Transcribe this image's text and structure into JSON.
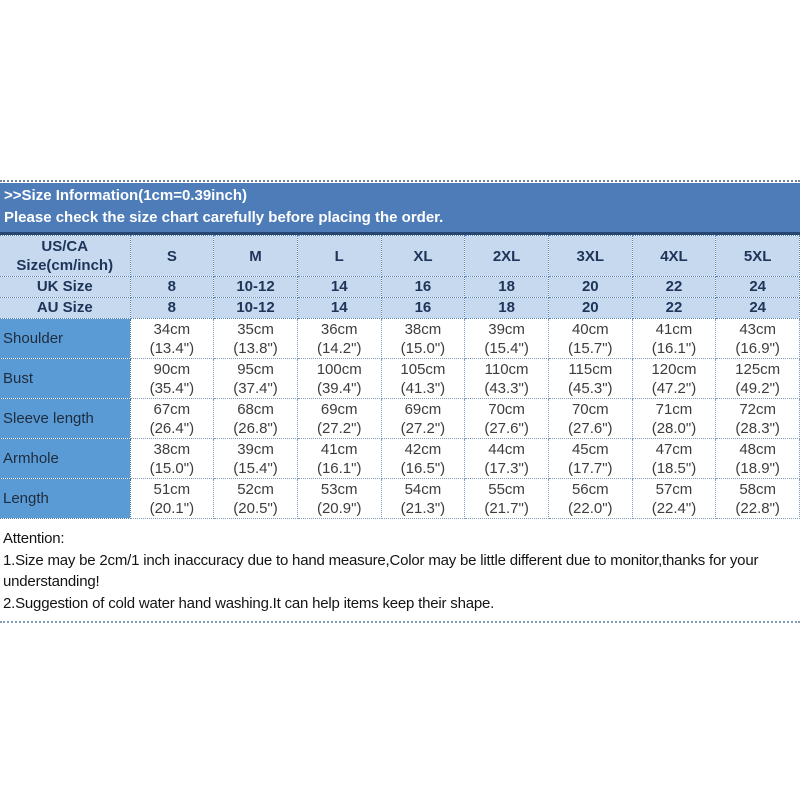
{
  "banner": {
    "title": ">>Size Information(1cm=0.39inch)",
    "subtitle": "Please check the size chart carefully before placing the order."
  },
  "size_table": {
    "header_col": {
      "line1": "US/CA",
      "line2": "Size(cm/inch)"
    },
    "sizes": [
      "S",
      "M",
      "L",
      "XL",
      "2XL",
      "3XL",
      "4XL",
      "5XL"
    ],
    "uk_row": {
      "label": "UK Size",
      "values": [
        "8",
        "10-12",
        "14",
        "16",
        "18",
        "20",
        "22",
        "24"
      ]
    },
    "au_row": {
      "label": "AU Size",
      "values": [
        "8",
        "10-12",
        "14",
        "16",
        "18",
        "20",
        "22",
        "24"
      ]
    },
    "measurement_rows": [
      {
        "label": "Shoulder",
        "cm": [
          "34cm",
          "35cm",
          "36cm",
          "38cm",
          "39cm",
          "40cm",
          "41cm",
          "43cm"
        ],
        "inch": [
          "(13.4\")",
          "(13.8\")",
          "(14.2\")",
          "(15.0\")",
          "(15.4\")",
          "(15.7\")",
          "(16.1\")",
          "(16.9\")"
        ]
      },
      {
        "label": "Bust",
        "cm": [
          "90cm",
          "95cm",
          "100cm",
          "105cm",
          "110cm",
          "115cm",
          "120cm",
          "125cm"
        ],
        "inch": [
          "(35.4\")",
          "(37.4\")",
          "(39.4\")",
          "(41.3\")",
          "(43.3\")",
          "(45.3\")",
          "(47.2\")",
          "(49.2\")"
        ]
      },
      {
        "label": "Sleeve length",
        "cm": [
          "67cm",
          "68cm",
          "69cm",
          "69cm",
          "70cm",
          "70cm",
          "71cm",
          "72cm"
        ],
        "inch": [
          "(26.4\")",
          "(26.8\")",
          "(27.2\")",
          "(27.2\")",
          "(27.6\")",
          "(27.6\")",
          "(28.0\")",
          "(28.3\")"
        ]
      },
      {
        "label": "Armhole",
        "cm": [
          "38cm",
          "39cm",
          "41cm",
          "42cm",
          "44cm",
          "45cm",
          "47cm",
          "48cm"
        ],
        "inch": [
          "(15.0\")",
          "(15.4\")",
          "(16.1\")",
          "(16.5\")",
          "(17.3\")",
          "(17.7\")",
          "(18.5\")",
          "(18.9\")"
        ]
      },
      {
        "label": "Length",
        "cm": [
          "51cm",
          "52cm",
          "53cm",
          "54cm",
          "55cm",
          "56cm",
          "57cm",
          "58cm"
        ],
        "inch": [
          "(20.1\")",
          "(20.5\")",
          "(20.9\")",
          "(21.3\")",
          "(21.7\")",
          "(22.0\")",
          "(22.4\")",
          "(22.8\")"
        ]
      }
    ]
  },
  "attention": {
    "heading": "Attention:",
    "note1": "1.Size may be 2cm/1 inch inaccuracy due to hand measure,Color may be little different due to monitor,thanks for your understanding!",
    "note2": "2.Suggestion of cold water hand washing.It can help items keep their shape."
  },
  "colors": {
    "banner_blue": "#4e7cb8",
    "banner_border_navy": "#26456f",
    "header_light_blue": "#c6d9ee",
    "label_column_blue": "#5b9bd5",
    "dotted_border_blue": "#5585c0"
  }
}
